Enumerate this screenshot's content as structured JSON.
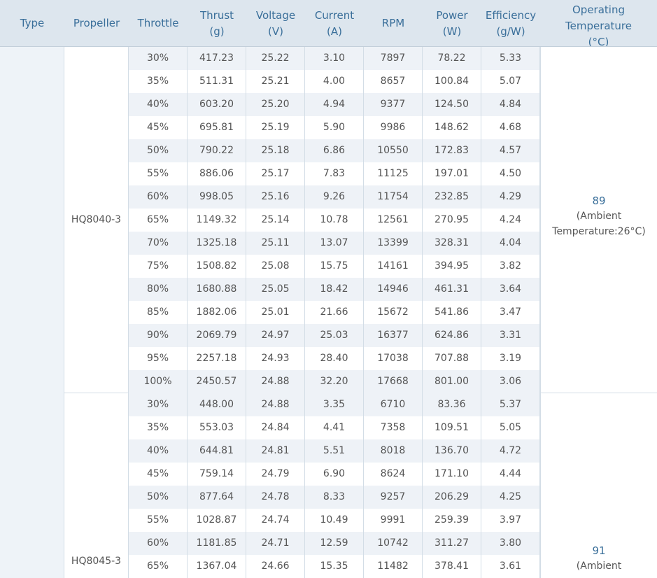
{
  "table": {
    "headers": {
      "type": "Type",
      "propeller": "Propeller",
      "throttle": "Throttle",
      "thrust": "Thrust (g)",
      "voltage": "Voltage (V)",
      "current": "Current (A)",
      "rpm": "RPM",
      "power": "Power (W)",
      "efficiency": "Efficiency (g/W)",
      "temperature": "Operating Temperature (°C)"
    },
    "groups": [
      {
        "propeller": "HQ8040-3",
        "temperature": "89",
        "ambient": "(Ambient Temperature:26°C)",
        "rows": [
          [
            "30%",
            "417.23",
            "25.22",
            "3.10",
            "7897",
            "78.22",
            "5.33"
          ],
          [
            "35%",
            "511.31",
            "25.21",
            "4.00",
            "8657",
            "100.84",
            "5.07"
          ],
          [
            "40%",
            "603.20",
            "25.20",
            "4.94",
            "9377",
            "124.50",
            "4.84"
          ],
          [
            "45%",
            "695.81",
            "25.19",
            "5.90",
            "9986",
            "148.62",
            "4.68"
          ],
          [
            "50%",
            "790.22",
            "25.18",
            "6.86",
            "10550",
            "172.83",
            "4.57"
          ],
          [
            "55%",
            "886.06",
            "25.17",
            "7.83",
            "11125",
            "197.01",
            "4.50"
          ],
          [
            "60%",
            "998.05",
            "25.16",
            "9.26",
            "11754",
            "232.85",
            "4.29"
          ],
          [
            "65%",
            "1149.32",
            "25.14",
            "10.78",
            "12561",
            "270.95",
            "4.24"
          ],
          [
            "70%",
            "1325.18",
            "25.11",
            "13.07",
            "13399",
            "328.31",
            "4.04"
          ],
          [
            "75%",
            "1508.82",
            "25.08",
            "15.75",
            "14161",
            "394.95",
            "3.82"
          ],
          [
            "80%",
            "1680.88",
            "25.05",
            "18.42",
            "14946",
            "461.31",
            "3.64"
          ],
          [
            "85%",
            "1882.06",
            "25.01",
            "21.66",
            "15672",
            "541.86",
            "3.47"
          ],
          [
            "90%",
            "2069.79",
            "24.97",
            "25.03",
            "16377",
            "624.86",
            "3.31"
          ],
          [
            "95%",
            "2257.18",
            "24.93",
            "28.40",
            "17038",
            "707.88",
            "3.19"
          ],
          [
            "100%",
            "2450.57",
            "24.88",
            "32.20",
            "17668",
            "801.00",
            "3.06"
          ]
        ]
      },
      {
        "propeller": "HQ8045-3",
        "temperature": "91",
        "ambient": "(Ambient",
        "rows": [
          [
            "30%",
            "448.00",
            "24.88",
            "3.35",
            "6710",
            "83.36",
            "5.37"
          ],
          [
            "35%",
            "553.03",
            "24.84",
            "4.41",
            "7358",
            "109.51",
            "5.05"
          ],
          [
            "40%",
            "644.81",
            "24.81",
            "5.51",
            "8018",
            "136.70",
            "4.72"
          ],
          [
            "45%",
            "759.14",
            "24.79",
            "6.90",
            "8624",
            "171.10",
            "4.44"
          ],
          [
            "50%",
            "877.64",
            "24.78",
            "8.33",
            "9257",
            "206.29",
            "4.25"
          ],
          [
            "55%",
            "1028.87",
            "24.74",
            "10.49",
            "9991",
            "259.39",
            "3.97"
          ],
          [
            "60%",
            "1181.85",
            "24.71",
            "12.59",
            "10742",
            "311.27",
            "3.80"
          ],
          [
            "65%",
            "1367.04",
            "24.66",
            "15.35",
            "11482",
            "378.41",
            "3.61"
          ]
        ]
      }
    ]
  }
}
